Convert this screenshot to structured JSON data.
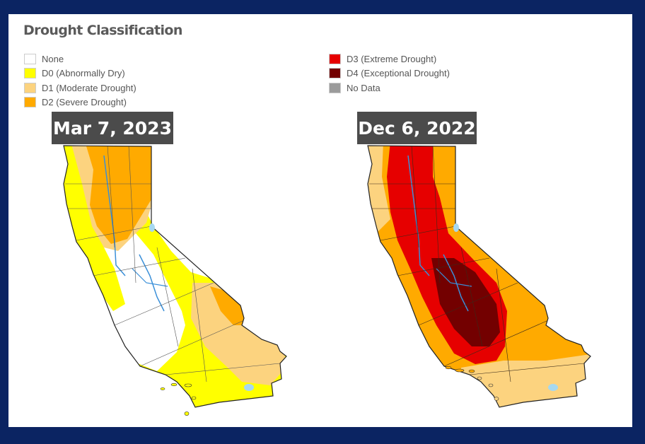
{
  "title": "Drought Classification",
  "legend": [
    {
      "label": "None",
      "color": "#ffffff"
    },
    {
      "label": "D0 (Abnormally Dry)",
      "color": "#ffff00"
    },
    {
      "label": "D1 (Moderate Drought)",
      "color": "#fcd37f"
    },
    {
      "label": "D2 (Severe Drought)",
      "color": "#ffaa00"
    },
    {
      "label": "D3 (Extreme Drought)",
      "color": "#e60000"
    },
    {
      "label": "D4 (Exceptional Drought)",
      "color": "#730000"
    },
    {
      "label": "No Data",
      "color": "#9b9b9b"
    }
  ],
  "maps": [
    {
      "date": "Mar 7, 2023",
      "dominant_categories": [
        "None",
        "D0 (Abnormally Dry)",
        "D1 (Moderate Drought)",
        "D2 (Severe Drought)"
      ]
    },
    {
      "date": "Dec 6, 2022",
      "dominant_categories": [
        "D1 (Moderate Drought)",
        "D2 (Severe Drought)",
        "D3 (Extreme Drought)",
        "D4 (Exceptional Drought)"
      ]
    }
  ]
}
